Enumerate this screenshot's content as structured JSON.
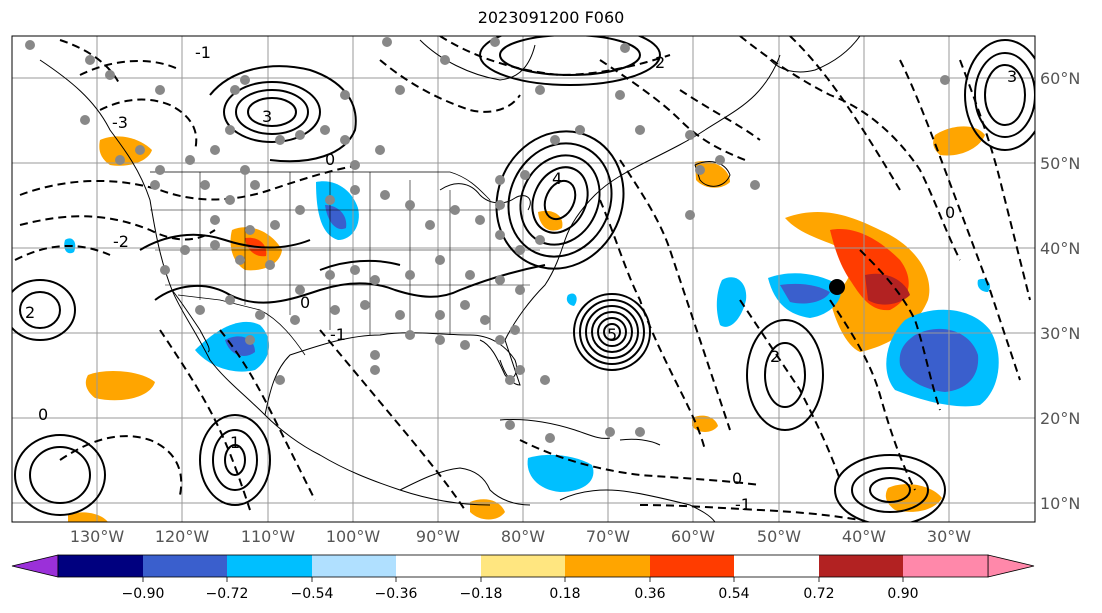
{
  "title": "2023091200 F060",
  "lon_labels": [
    "130°W",
    "120°W",
    "110°W",
    "100°W",
    "90°W",
    "80°W",
    "70°W",
    "60°W",
    "50°W",
    "40°W",
    "30°W"
  ],
  "lat_labels": [
    "60°N",
    "50°N",
    "40°N",
    "30°N",
    "20°N",
    "10°N"
  ],
  "colorbar": {
    "ticks": [
      "−0.90",
      "−0.72",
      "−0.54",
      "−0.36",
      "−0.18",
      "0.18",
      "0.36",
      "0.54",
      "0.72",
      "0.90"
    ],
    "colors": [
      "#9b30d9",
      "#00007f",
      "#3a5fcd",
      "#00bfff",
      "#b0e0ff",
      "#ffffff",
      "#ffe680",
      "#ffa500",
      "#ff3c00",
      "#b22222",
      "#ff88aa"
    ]
  },
  "contour_labels": [
    "-3",
    "-2",
    "-1",
    "0",
    "1",
    "2",
    "3",
    "4",
    "5"
  ],
  "marker_colors": {
    "station": "#888888",
    "center": "#000000"
  }
}
